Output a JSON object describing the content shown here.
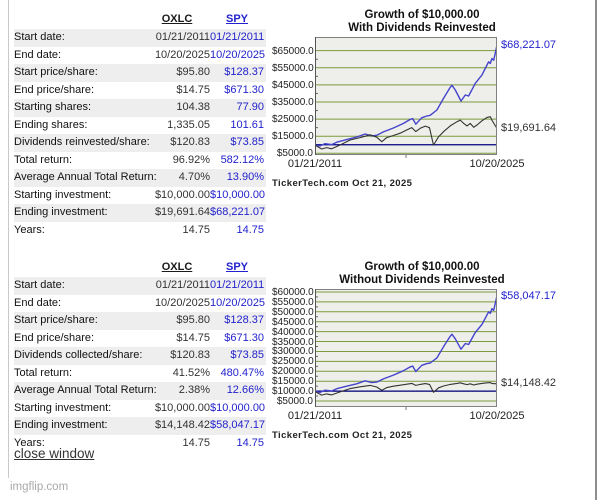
{
  "colors": {
    "spy_blue_text": "#2222cc",
    "spy_line_blue": "#4444cc",
    "oxlc_dark": "#333333",
    "grid_olive": "#7b9a3d",
    "plot_bg": "#eeeeea",
    "plot_border": "#808080",
    "baseline_navy": "#000080",
    "alt_row_bg": "#eeeeee"
  },
  "page": {
    "close_link": "close window",
    "watermark": "imgflip.com"
  },
  "tables": [
    {
      "headers": {
        "oxlc": "OXLC",
        "spy": "SPY"
      },
      "rows": [
        {
          "label": "Start date:",
          "oxlc": "01/21/2011",
          "spy": "01/21/2011"
        },
        {
          "label": "End date:",
          "oxlc": "10/20/2025",
          "spy": "10/20/2025"
        },
        {
          "label": "Start price/share:",
          "oxlc": "$95.80",
          "spy": "$128.37"
        },
        {
          "label": "End price/share:",
          "oxlc": "$14.75",
          "spy": "$671.30"
        },
        {
          "label": "Starting shares:",
          "oxlc": "104.38",
          "spy": "77.90"
        },
        {
          "label": "Ending shares:",
          "oxlc": "1,335.05",
          "spy": "101.61"
        },
        {
          "label": "Dividends reinvested/share:",
          "oxlc": "$120.83",
          "spy": "$73.85"
        },
        {
          "label": "Total return:",
          "oxlc": "96.92%",
          "spy": "582.12%"
        },
        {
          "label": "Average Annual Total Return:",
          "oxlc": "4.70%",
          "spy": "13.90%"
        },
        {
          "label": "Starting investment:",
          "oxlc": "$10,000.00",
          "spy": "$10,000.00"
        },
        {
          "label": "Ending investment:",
          "oxlc": "$19,691.64",
          "spy": "$68,221.07"
        },
        {
          "label": "Years:",
          "oxlc": "14.75",
          "spy": "14.75"
        }
      ]
    },
    {
      "headers": {
        "oxlc": "OXLC",
        "spy": "SPY"
      },
      "rows": [
        {
          "label": "Start date:",
          "oxlc": "01/21/2011",
          "spy": "01/21/2011"
        },
        {
          "label": "End date:",
          "oxlc": "10/20/2025",
          "spy": "10/20/2025"
        },
        {
          "label": "Start price/share:",
          "oxlc": "$95.80",
          "spy": "$128.37"
        },
        {
          "label": "End price/share:",
          "oxlc": "$14.75",
          "spy": "$671.30"
        },
        {
          "label": "Dividends collected/share:",
          "oxlc": "$120.83",
          "spy": "$73.85"
        },
        {
          "label": "Total return:",
          "oxlc": "41.52%",
          "spy": "480.47%"
        },
        {
          "label": "Average Annual Total Return:",
          "oxlc": "2.38%",
          "spy": "12.66%"
        },
        {
          "label": "Starting investment:",
          "oxlc": "$10,000.00",
          "spy": "$10,000.00"
        },
        {
          "label": "Ending investment:",
          "oxlc": "$14,148.42",
          "spy": "$58,047.17"
        },
        {
          "label": "Years:",
          "oxlc": "14.75",
          "spy": "14.75"
        }
      ]
    }
  ],
  "chart_data": [
    {
      "type": "line",
      "title": [
        "Growth of $10,000.00",
        "With Dividends Reinvested"
      ],
      "x_ticks": [
        "01/21/2011",
        "10/20/2025"
      ],
      "source": "TickerTech.com  Oct 21, 2025",
      "ylim": [
        4000,
        73000
      ],
      "y_ticks": [
        {
          "label": "$65000.0",
          "value": 65000
        },
        {
          "label": "$55000.0",
          "value": 55000
        },
        {
          "label": "$45000.0",
          "value": 45000
        },
        {
          "label": "$35000.0",
          "value": 35000
        },
        {
          "label": "$25000.0",
          "value": 25000
        },
        {
          "label": "$15000.0",
          "value": 15000
        },
        {
          "label": "$5000.0",
          "value": 5000
        }
      ],
      "baseline": 10000,
      "end_labels": [
        {
          "text": "$68,221.07",
          "value": 68221,
          "color": "#2222cc"
        },
        {
          "text": "$19,691.64",
          "value": 19691,
          "color": "#333333"
        }
      ],
      "series": [
        {
          "name": "SPY with dividends",
          "color": "#4444cc",
          "width": 1.4,
          "x": [
            0,
            0.028,
            0.055,
            0.092,
            0.119,
            0.174,
            0.229,
            0.275,
            0.312,
            0.339,
            0.376,
            0.431,
            0.486,
            0.523,
            0.537,
            0.554,
            0.587,
            0.615,
            0.633,
            0.67,
            0.706,
            0.743,
            0.752,
            0.771,
            0.802,
            0.826,
            0.844,
            0.881,
            0.917,
            0.945,
            0.954,
            0.963,
            0.972,
            0.982,
            1.0
          ],
          "y": [
            9800,
            9300,
            10600,
            10100,
            11500,
            13000,
            14500,
            16300,
            15200,
            15500,
            17500,
            19800,
            22500,
            24800,
            25300,
            22000,
            25800,
            26800,
            27200,
            30300,
            37100,
            43500,
            44800,
            42000,
            35600,
            39100,
            38500,
            45900,
            50700,
            56600,
            58500,
            57500,
            60400,
            59400,
            68221
          ]
        },
        {
          "name": "OXLC with dividends",
          "color": "#333333",
          "width": 1.1,
          "x": [
            0,
            0.037,
            0.064,
            0.092,
            0.138,
            0.193,
            0.248,
            0.303,
            0.339,
            0.367,
            0.394,
            0.431,
            0.468,
            0.505,
            0.532,
            0.554,
            0.578,
            0.606,
            0.629,
            0.651,
            0.679,
            0.706,
            0.743,
            0.78,
            0.798,
            0.817,
            0.835,
            0.853,
            0.872,
            0.89,
            0.917,
            0.945,
            0.963,
            0.972,
            0.991,
            1.0
          ],
          "y": [
            9800,
            7500,
            8300,
            7600,
            9850,
            12800,
            14200,
            15800,
            14400,
            11800,
            14200,
            15400,
            16750,
            18700,
            20000,
            17700,
            19600,
            20900,
            19950,
            9800,
            14700,
            17600,
            21000,
            23450,
            24400,
            22500,
            21000,
            22500,
            20200,
            21550,
            24000,
            26000,
            26400,
            24400,
            21000,
            19691
          ]
        }
      ]
    },
    {
      "type": "line",
      "title": [
        "Growth of $10,000.00",
        "Without Dividends Reinvested"
      ],
      "x_ticks": [
        "01/21/2011",
        "10/20/2025"
      ],
      "source": "TickerTech.com  Oct 21, 2025",
      "ylim": [
        2000,
        61500
      ],
      "y_ticks": [
        {
          "label": "$60000.0",
          "value": 60000
        },
        {
          "label": "$55000.0",
          "value": 55000
        },
        {
          "label": "$50000.0",
          "value": 50000
        },
        {
          "label": "$45000.0",
          "value": 45000
        },
        {
          "label": "$40000.0",
          "value": 40000
        },
        {
          "label": "$35000.0",
          "value": 35000
        },
        {
          "label": "$30000.0",
          "value": 30000
        },
        {
          "label": "$25000.0",
          "value": 25000
        },
        {
          "label": "$20000.0",
          "value": 20000
        },
        {
          "label": "$15000.0",
          "value": 15000
        },
        {
          "label": "$10000.0",
          "value": 10000
        },
        {
          "label": "$5000.0",
          "value": 5000
        }
      ],
      "baseline": 10000,
      "end_labels": [
        {
          "text": "$58,047.17",
          "value": 58047,
          "color": "#2222cc"
        },
        {
          "text": "$14,148.42",
          "value": 14148,
          "color": "#333333"
        }
      ],
      "series": [
        {
          "name": "SPY price only",
          "color": "#4444cc",
          "width": 1.4,
          "x": [
            0,
            0.028,
            0.055,
            0.092,
            0.119,
            0.174,
            0.229,
            0.275,
            0.312,
            0.339,
            0.376,
            0.431,
            0.486,
            0.523,
            0.537,
            0.554,
            0.587,
            0.615,
            0.633,
            0.67,
            0.706,
            0.743,
            0.752,
            0.771,
            0.802,
            0.826,
            0.844,
            0.881,
            0.917,
            0.945,
            0.954,
            0.963,
            0.972,
            0.982,
            1.0
          ],
          "y": [
            9835,
            9423,
            10495,
            10083,
            11238,
            12475,
            13713,
            15198,
            14290,
            14538,
            16188,
            18085,
            20313,
            22210,
            22623,
            19900,
            23035,
            23860,
            24190,
            26748,
            32358,
            37638,
            38710,
            36400,
            31120,
            34008,
            33513,
            39618,
            43578,
            48445,
            50013,
            49188,
            51580,
            50755,
            58047
          ]
        },
        {
          "name": "OXLC price only",
          "color": "#333333",
          "width": 1.1,
          "x": [
            0,
            0.037,
            0.064,
            0.092,
            0.138,
            0.193,
            0.248,
            0.303,
            0.339,
            0.367,
            0.394,
            0.431,
            0.468,
            0.505,
            0.532,
            0.554,
            0.578,
            0.606,
            0.629,
            0.651,
            0.679,
            0.706,
            0.743,
            0.78,
            0.798,
            0.817,
            0.835,
            0.853,
            0.872,
            0.89,
            0.917,
            0.945,
            0.963,
            0.972,
            0.991,
            1.0
          ],
          "y": [
            9800,
            8000,
            8600,
            8100,
            9600,
            11300,
            12200,
            12900,
            12100,
            10400,
            11800,
            12500,
            13000,
            13500,
            13900,
            12900,
            13400,
            13800,
            13400,
            9400,
            11700,
            12600,
            13400,
            13900,
            14200,
            13700,
            13300,
            13700,
            13100,
            13500,
            13900,
            14200,
            14300,
            13900,
            13700,
            14148
          ]
        }
      ]
    }
  ]
}
